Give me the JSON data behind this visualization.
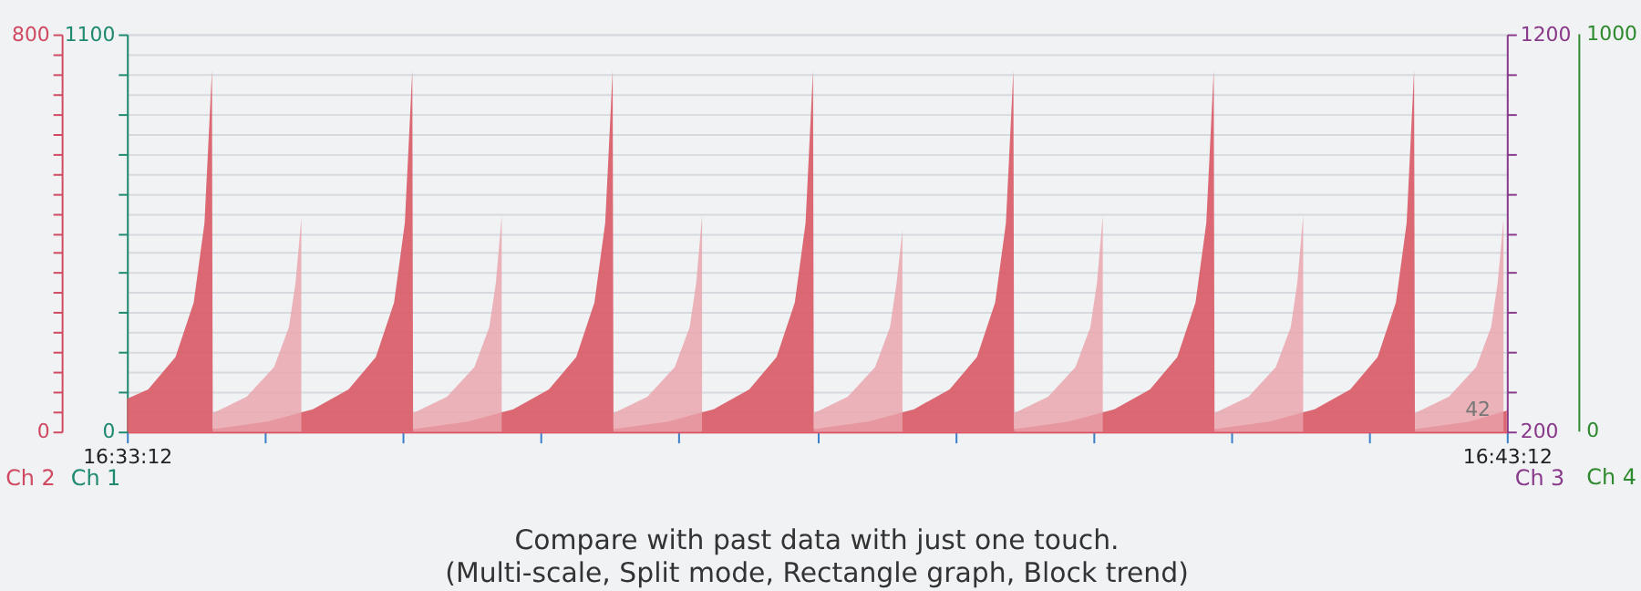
{
  "chart_data": {
    "type": "area",
    "title": "Compare with past data with just one touch.",
    "subtitle": "(Multi-scale, Split mode, Rectangle graph, Block trend)",
    "x": [
      16.553333,
      16.5559,
      16.5592,
      16.5614,
      16.5627,
      16.5636,
      16.5637,
      16.5703,
      16.5758,
      16.5801,
      16.5834,
      16.5856,
      16.5869,
      16.5878,
      16.5879,
      16.5945,
      16.6,
      16.6043,
      16.6076,
      16.6098,
      16.6111,
      16.612,
      16.6121,
      16.6187,
      16.6242,
      16.6285,
      16.6318,
      16.634,
      16.6353,
      16.6362,
      16.6363,
      16.6429,
      16.6484,
      16.6527,
      16.656,
      16.6582,
      16.6595,
      16.6604,
      16.6605,
      16.6671,
      16.6726,
      16.6769,
      16.6802,
      16.6824,
      16.6837,
      16.6846,
      16.6847,
      16.6913,
      16.6968,
      16.7011,
      16.7044,
      16.7066,
      16.7079,
      16.7088,
      16.7089,
      16.7155,
      16.72
    ],
    "series": [
      {
        "color": "#d9606a",
        "values": [
          66,
          85,
          150,
          260,
          420,
          727,
          5,
          20,
          45,
          85,
          150,
          260,
          420,
          727,
          5,
          20,
          45,
          85,
          150,
          260,
          420,
          727,
          5,
          20,
          45,
          85,
          150,
          260,
          420,
          727,
          5,
          20,
          45,
          85,
          150,
          260,
          420,
          727,
          5,
          20,
          45,
          85,
          150,
          260,
          420,
          727,
          5,
          20,
          45,
          85,
          150,
          260,
          420,
          727,
          5,
          20,
          42
        ]
      },
      {
        "color": "#eaa2aa",
        "x": [
          16.5637,
          16.5678,
          16.5711,
          16.5729,
          16.5737,
          16.5744,
          16.5745,
          16.5879,
          16.592,
          16.5953,
          16.5971,
          16.5979,
          16.5986,
          16.5987,
          16.6121,
          16.6162,
          16.6195,
          16.6213,
          16.6221,
          16.6228,
          16.6229,
          16.6363,
          16.6404,
          16.6437,
          16.6455,
          16.6463,
          16.647,
          16.6471,
          16.6605,
          16.6646,
          16.6679,
          16.6697,
          16.6705,
          16.6712,
          16.6713,
          16.6847,
          16.6888,
          16.6921,
          16.6939,
          16.6947,
          16.6954,
          16.6955,
          16.7089,
          16.713,
          16.7163,
          16.7181,
          16.7189,
          16.7196
        ],
        "values": [
          37,
          70,
          130,
          210,
          300,
          430,
          null,
          37,
          70,
          130,
          210,
          300,
          435,
          null,
          37,
          70,
          130,
          210,
          300,
          435,
          null,
          37,
          70,
          130,
          210,
          300,
          405,
          null,
          37,
          70,
          130,
          210,
          300,
          435,
          null,
          37,
          70,
          130,
          210,
          300,
          435,
          null,
          37,
          70,
          130,
          210,
          300,
          427
        ]
      }
    ],
    "xlim": [
      16.553333,
      16.72
    ],
    "xticks": [
      {
        "value": 16.553333,
        "label": "16:33:12"
      },
      {
        "value": 16.57,
        "label": null
      },
      {
        "value": 16.586667,
        "label": null
      },
      {
        "value": 16.603333,
        "label": null
      },
      {
        "value": 16.62,
        "label": null
      },
      {
        "value": 16.636667,
        "label": null
      },
      {
        "value": 16.653333,
        "label": null
      },
      {
        "value": 16.67,
        "label": null
      },
      {
        "value": 16.686667,
        "label": null
      },
      {
        "value": 16.703333,
        "label": null
      },
      {
        "value": 16.72,
        "label": "16:43:12"
      }
    ],
    "ylabel": "Ch 2",
    "ylim": [
      0,
      800
    ],
    "yticks": [
      0,
      {
        "value": 40,
        "label": null
      },
      {
        "value": 80,
        "label": null
      },
      {
        "value": 120,
        "label": null
      },
      {
        "value": 160,
        "label": null
      },
      {
        "value": 200,
        "label": null
      },
      {
        "value": 240,
        "label": null
      },
      {
        "value": 280,
        "label": null
      },
      {
        "value": 320,
        "label": null
      },
      {
        "value": 360,
        "label": null
      },
      {
        "value": 400,
        "label": null
      },
      {
        "value": 440,
        "label": null
      },
      {
        "value": 480,
        "label": null
      },
      {
        "value": 520,
        "label": null
      },
      {
        "value": 560,
        "label": null
      },
      {
        "value": 600,
        "label": null
      },
      {
        "value": 640,
        "label": null
      },
      {
        "value": 680,
        "label": null
      },
      {
        "value": 720,
        "label": null
      },
      {
        "value": 760,
        "label": null
      },
      800
    ],
    "y2label": "Ch 1",
    "y2lim": [
      0,
      1100
    ],
    "y2ticks": [
      0,
      {
        "value": 110,
        "label": null
      },
      {
        "value": 220,
        "label": null
      },
      {
        "value": 330,
        "label": null
      },
      {
        "value": 440,
        "label": null
      },
      {
        "value": 550,
        "label": null
      },
      {
        "value": 660,
        "label": null
      },
      {
        "value": 770,
        "label": null
      },
      {
        "value": 880,
        "label": null
      },
      {
        "value": 990,
        "label": null
      },
      1100
    ],
    "y3label": "Ch 3",
    "y3lim": [
      200,
      1200
    ],
    "y3ticks": [
      200,
      {
        "value": 300,
        "label": null
      },
      {
        "value": 400,
        "label": null
      },
      {
        "value": 500,
        "label": null
      },
      {
        "value": 600,
        "label": null
      },
      {
        "value": 700,
        "label": null
      },
      {
        "value": 800,
        "label": null
      },
      {
        "value": 900,
        "label": null
      },
      {
        "value": 1000,
        "label": null
      },
      {
        "value": 1100,
        "label": null
      },
      1200
    ],
    "grid": "y",
    "annotations": [
      {
        "text": "42",
        "x": 16.7165,
        "y": 42
      },
      "1000",
      "0",
      "Ch 4"
    ]
  }
}
